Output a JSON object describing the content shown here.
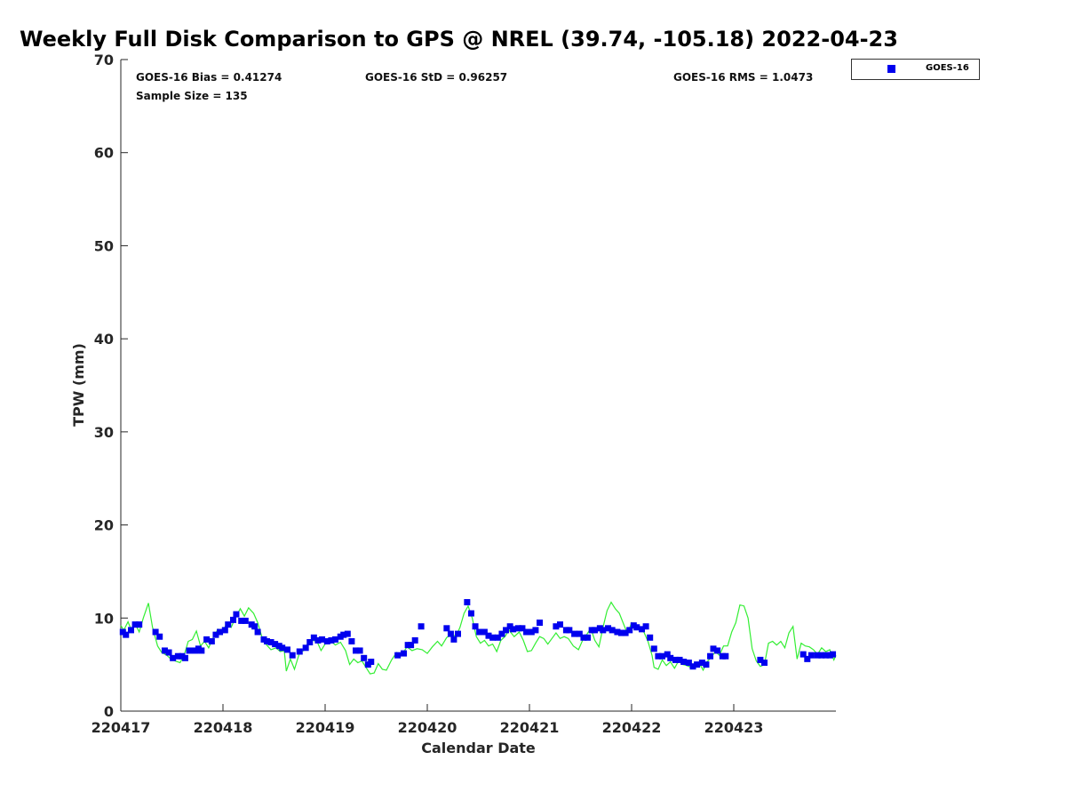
{
  "chart_data": {
    "type": "scatter",
    "title": "Weekly Full Disk Comparison to GPS @ NREL (39.74, -105.18) 2022-04-23",
    "xlabel": "Calendar Date",
    "ylabel": "TPW (mm)",
    "xlim": [
      0,
      7
    ],
    "ylim": [
      0,
      70
    ],
    "x_units": "days since 220417",
    "x_tick_labels": [
      "220417",
      "220418",
      "220419",
      "220420",
      "220421",
      "220422",
      "220423"
    ],
    "y_ticks": [
      0,
      10,
      20,
      30,
      40,
      50,
      60,
      70
    ],
    "legend": {
      "placement": "outside-top-right",
      "entries": [
        "GOES-16"
      ]
    },
    "stats": {
      "bias": "GOES-16 Bias = 0.41274",
      "std": "GOES-16 StD = 0.96257",
      "rms": "GOES-16 RMS = 1.0473",
      "sample": "Sample Size = 135"
    },
    "colors": {
      "goes": "#0000ee",
      "gps": "#33ee33"
    },
    "series": [
      {
        "name": "GOES-16",
        "kind": "markers",
        "x": [
          0.02,
          0.05,
          0.1,
          0.14,
          0.18,
          0.34,
          0.38,
          0.43,
          0.47,
          0.51,
          0.56,
          0.6,
          0.63,
          0.67,
          0.73,
          0.76,
          0.79,
          0.84,
          0.89,
          0.93,
          0.97,
          1.02,
          1.05,
          1.1,
          1.13,
          1.18,
          1.22,
          1.28,
          1.31,
          1.34,
          1.4,
          1.43,
          1.47,
          1.51,
          1.55,
          1.58,
          1.63,
          1.68,
          1.75,
          1.81,
          1.85,
          1.89,
          1.93,
          1.97,
          2.02,
          2.06,
          2.1,
          2.15,
          2.18,
          2.22,
          2.26,
          2.3,
          2.34,
          2.38,
          2.42,
          2.45,
          2.71,
          2.77,
          2.81,
          2.84,
          2.88,
          2.94,
          3.19,
          3.23,
          3.26,
          3.3,
          3.39,
          3.43,
          3.47,
          3.51,
          3.56,
          3.6,
          3.64,
          3.69,
          3.73,
          3.77,
          3.81,
          3.84,
          3.89,
          3.93,
          3.97,
          4.02,
          4.06,
          4.1,
          4.26,
          4.3,
          4.36,
          4.39,
          4.44,
          4.49,
          4.53,
          4.57,
          4.61,
          4.64,
          4.69,
          4.72,
          4.77,
          4.81,
          4.86,
          4.9,
          4.94,
          4.98,
          5.02,
          5.05,
          5.1,
          5.14,
          5.18,
          5.22,
          5.26,
          5.3,
          5.35,
          5.38,
          5.43,
          5.47,
          5.51,
          5.56,
          5.6,
          5.64,
          5.69,
          5.73,
          5.77,
          5.8,
          5.84,
          5.89,
          5.92,
          6.26,
          6.3,
          6.68,
          6.72,
          6.76,
          6.82,
          6.86,
          6.9,
          6.94,
          6.97
        ],
        "y": [
          8.5,
          8.2,
          8.7,
          9.3,
          9.3,
          8.5,
          8.0,
          6.5,
          6.3,
          5.7,
          5.9,
          5.9,
          5.7,
          6.5,
          6.5,
          6.7,
          6.5,
          7.7,
          7.5,
          8.2,
          8.5,
          8.7,
          9.3,
          9.8,
          10.4,
          9.7,
          9.7,
          9.3,
          9.1,
          8.5,
          7.7,
          7.5,
          7.4,
          7.2,
          7.0,
          6.8,
          6.6,
          6.0,
          6.4,
          6.8,
          7.4,
          7.9,
          7.6,
          7.7,
          7.5,
          7.6,
          7.7,
          8.0,
          8.2,
          8.3,
          7.5,
          6.5,
          6.5,
          5.7,
          5.0,
          5.3,
          6.0,
          6.2,
          7.1,
          7.1,
          7.6,
          9.1,
          8.9,
          8.3,
          7.7,
          8.3,
          11.7,
          10.5,
          9.1,
          8.5,
          8.5,
          8.1,
          7.9,
          7.9,
          8.3,
          8.7,
          9.1,
          8.8,
          8.9,
          8.9,
          8.5,
          8.5,
          8.7,
          9.5,
          9.1,
          9.3,
          8.7,
          8.7,
          8.3,
          8.3,
          7.9,
          7.9,
          8.7,
          8.7,
          8.9,
          8.7,
          8.9,
          8.7,
          8.5,
          8.4,
          8.4,
          8.7,
          9.2,
          9.0,
          8.8,
          9.1,
          7.9,
          6.7,
          5.9,
          5.9,
          6.1,
          5.7,
          5.5,
          5.5,
          5.3,
          5.2,
          4.8,
          5.0,
          5.2,
          5.0,
          5.9,
          6.7,
          6.5,
          5.9,
          5.9,
          5.5,
          5.2,
          6.1,
          5.6,
          6.0,
          6.0,
          6.0,
          6.0,
          6.0,
          6.1
        ]
      },
      {
        "name": "GPS",
        "kind": "line",
        "x": [
          0.0,
          0.03,
          0.07,
          0.1,
          0.14,
          0.18,
          0.22,
          0.27,
          0.31,
          0.36,
          0.4,
          0.45,
          0.49,
          0.53,
          0.58,
          0.62,
          0.66,
          0.7,
          0.74,
          0.78,
          0.82,
          0.86,
          0.9,
          0.95,
          1.0,
          1.04,
          1.08,
          1.13,
          1.17,
          1.21,
          1.25,
          1.3,
          1.34,
          1.38,
          1.42,
          1.47,
          1.52,
          1.56,
          1.6,
          1.62,
          1.66,
          1.7,
          1.75,
          1.79,
          1.83,
          1.88,
          1.92,
          1.96,
          2.0,
          2.05,
          2.1,
          2.15,
          2.2,
          2.24,
          2.28,
          2.32,
          2.36,
          2.4,
          2.44,
          2.48,
          2.52,
          2.56,
          2.6,
          2.65,
          2.7,
          2.75,
          2.8,
          2.85,
          2.9,
          2.95,
          3.0,
          3.05,
          3.1,
          3.14,
          3.19,
          3.24,
          3.28,
          3.32,
          3.36,
          3.4,
          3.44,
          3.48,
          3.52,
          3.56,
          3.6,
          3.64,
          3.68,
          3.72,
          3.76,
          3.8,
          3.85,
          3.9,
          3.94,
          3.98,
          4.02,
          4.06,
          4.1,
          4.14,
          4.18,
          4.22,
          4.26,
          4.3,
          4.34,
          4.38,
          4.43,
          4.48,
          4.52,
          4.56,
          4.6,
          4.64,
          4.68,
          4.72,
          4.76,
          4.8,
          4.84,
          4.88,
          4.92,
          4.96,
          5.0,
          5.04,
          5.08,
          5.12,
          5.16,
          5.2,
          5.22,
          5.26,
          5.3,
          5.34,
          5.38,
          5.42,
          5.46,
          5.5,
          5.54,
          5.58,
          5.62,
          5.66,
          5.7,
          5.74,
          5.78,
          5.82,
          5.86,
          5.9,
          5.94,
          5.98,
          6.02,
          6.06,
          6.1,
          6.14,
          6.18,
          6.22,
          6.26,
          6.3,
          6.34,
          6.38,
          6.42,
          6.46,
          6.5,
          6.54,
          6.58,
          6.62,
          6.66,
          6.7,
          6.74,
          6.78,
          6.82,
          6.86,
          6.9,
          6.94,
          6.98,
          7.0
        ],
        "y": [
          9.2,
          8.7,
          9.6,
          8.8,
          9.4,
          8.5,
          10.0,
          11.6,
          9.0,
          7.0,
          6.3,
          6.0,
          5.6,
          5.4,
          5.2,
          6.0,
          7.5,
          7.7,
          8.6,
          7.0,
          7.5,
          6.8,
          7.8,
          8.8,
          8.6,
          9.5,
          9.0,
          10.2,
          11.0,
          10.2,
          11.1,
          10.5,
          9.5,
          8.0,
          7.2,
          6.6,
          6.8,
          6.4,
          6.5,
          4.3,
          5.6,
          4.5,
          6.3,
          6.5,
          7.3,
          7.6,
          7.5,
          6.5,
          7.2,
          7.6,
          7.1,
          7.4,
          6.5,
          5.0,
          5.6,
          5.2,
          5.4,
          4.7,
          4.0,
          4.1,
          5.1,
          4.5,
          4.4,
          5.5,
          6.3,
          6.0,
          6.9,
          6.5,
          6.7,
          6.6,
          6.2,
          6.9,
          7.5,
          7.0,
          7.9,
          8.3,
          8.0,
          9.0,
          10.5,
          11.3,
          10.0,
          8.0,
          7.3,
          7.6,
          7.0,
          7.2,
          6.4,
          7.6,
          8.0,
          8.7,
          8.0,
          8.5,
          7.6,
          6.4,
          6.5,
          7.3,
          8.0,
          7.8,
          7.2,
          7.8,
          8.4,
          7.8,
          8.0,
          7.8,
          7.0,
          6.6,
          7.6,
          8.2,
          8.9,
          7.6,
          6.9,
          9.0,
          10.8,
          11.7,
          11.0,
          10.5,
          9.4,
          8.3,
          9.5,
          9.1,
          9.0,
          8.5,
          7.5,
          6.0,
          4.7,
          4.5,
          5.5,
          4.9,
          5.3,
          4.6,
          5.4,
          5.0,
          4.9,
          4.7,
          4.6,
          5.2,
          4.4,
          5.3,
          5.8,
          6.4,
          6.0,
          7.0,
          7.0,
          8.5,
          9.5,
          11.4,
          11.3,
          10.0,
          6.7,
          5.4,
          4.8,
          5.0,
          7.3,
          7.5,
          7.1,
          7.5,
          6.8,
          8.4,
          9.1,
          5.6,
          7.3,
          7.0,
          6.9,
          6.6,
          6.1,
          6.8,
          6.4,
          6.6,
          5.5,
          6.0
        ]
      }
    ]
  }
}
